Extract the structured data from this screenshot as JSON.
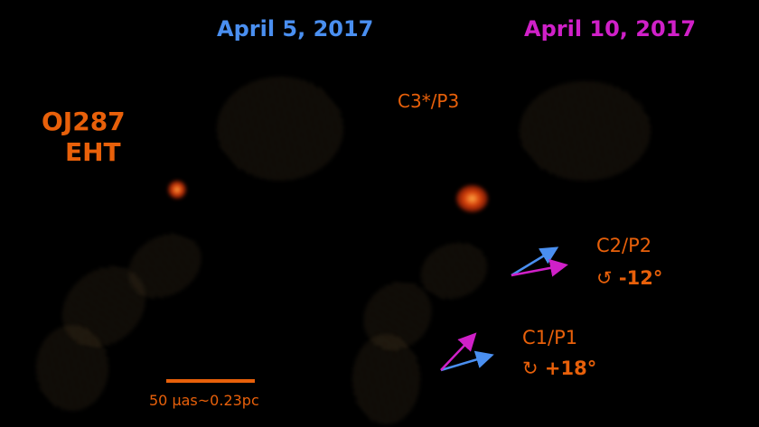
{
  "titles": {
    "left": "April 5, 2017",
    "right": "April 10, 2017"
  },
  "source": {
    "name": "OJ287",
    "instrument": "EHT"
  },
  "labels": {
    "c3": "C3*/P3",
    "c2": "C2/P2",
    "c2_rotation": "-12°",
    "c1": "C1/P1",
    "c1_rotation": "+18°"
  },
  "scale_bar": {
    "label": "50 µas~0.23pc"
  },
  "colors": {
    "annotation": "#e8600a",
    "april5": "#4a8ff0",
    "april10": "#d020c8"
  },
  "icons": {
    "c2_rotation": "counterclockwise-arrow-icon",
    "c1_rotation": "clockwise-arrow-icon"
  }
}
